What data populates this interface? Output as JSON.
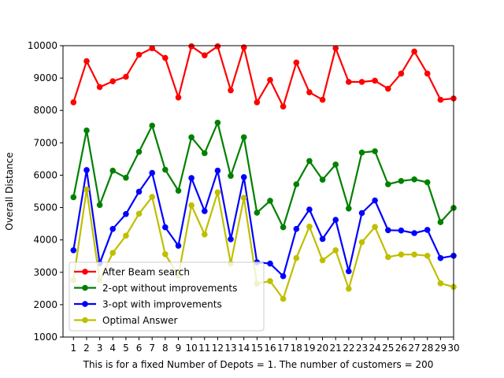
{
  "chart_data": {
    "type": "line",
    "title": "",
    "xlabel": "This is for a fixed Number of Depots = 1. The number of customers = 200",
    "ylabel": "Overall Distance",
    "x": [
      1,
      2,
      3,
      4,
      5,
      6,
      7,
      8,
      9,
      10,
      11,
      12,
      13,
      14,
      15,
      16,
      17,
      18,
      19,
      20,
      21,
      22,
      23,
      24,
      25,
      26,
      27,
      28,
      29,
      30
    ],
    "xlim": [
      0.2,
      30
    ],
    "ylim": [
      1000,
      10000
    ],
    "yticks": [
      1000,
      2000,
      3000,
      4000,
      5000,
      6000,
      7000,
      8000,
      9000,
      10000
    ],
    "grid": false,
    "legend": "lower-left",
    "series": [
      {
        "name": "After Beam search",
        "color": "#ff0000",
        "values": [
          8250,
          9520,
          8720,
          8900,
          9040,
          9720,
          9920,
          9620,
          8400,
          9980,
          9700,
          9980,
          8620,
          9950,
          8250,
          8940,
          8120,
          9480,
          8560,
          8330,
          9920,
          8880,
          8880,
          8920,
          8670,
          9140,
          9820,
          9140,
          8330,
          8370
        ]
      },
      {
        "name": "2-opt without improvements",
        "color": "#008000",
        "values": [
          5320,
          7380,
          5080,
          6140,
          5920,
          6720,
          7530,
          6170,
          5520,
          7170,
          6680,
          7620,
          5980,
          7170,
          4840,
          5210,
          4390,
          5720,
          6440,
          5860,
          6330,
          4970,
          6700,
          6740,
          5720,
          5820,
          5870,
          5780,
          4550,
          4990
        ]
      },
      {
        "name": "3-opt with improvements",
        "color": "#0000ff",
        "values": [
          3680,
          6160,
          3280,
          4340,
          4800,
          5490,
          6070,
          4390,
          3820,
          5910,
          4890,
          6140,
          4020,
          5940,
          3310,
          3270,
          2880,
          4340,
          4940,
          4030,
          4620,
          3030,
          4830,
          5220,
          4300,
          4290,
          4210,
          4310,
          3440,
          3510
        ]
      },
      {
        "name": "Optimal Answer",
        "color": "#bfbf00",
        "values": [
          2760,
          5560,
          2760,
          3600,
          4130,
          4810,
          5330,
          3560,
          2900,
          5070,
          4170,
          5470,
          3270,
          5300,
          2650,
          2730,
          2180,
          3440,
          4410,
          3370,
          3680,
          2490,
          3930,
          4400,
          3470,
          3550,
          3550,
          3510,
          2660,
          2550
        ]
      }
    ]
  }
}
